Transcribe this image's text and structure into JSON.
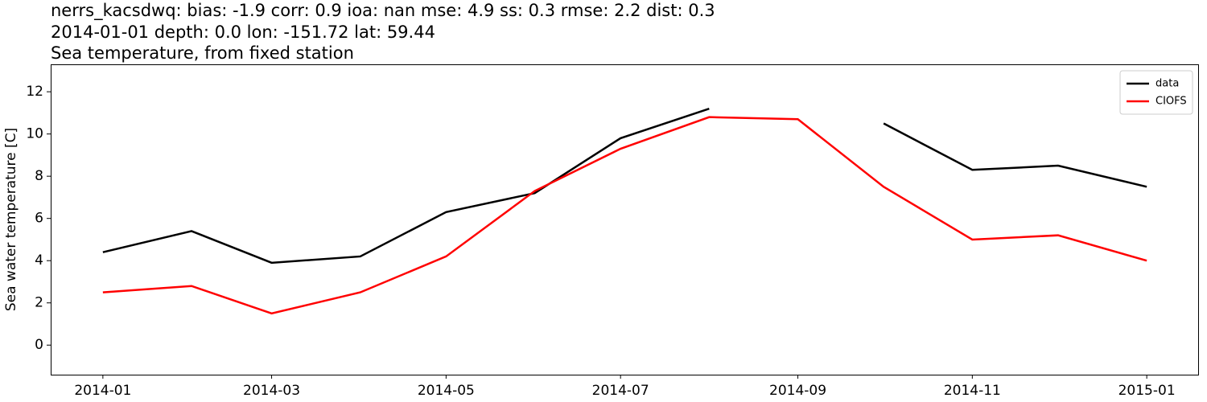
{
  "chart_data": {
    "type": "line",
    "title": "nerrs_kacsdwq: bias: -1.9  corr: 0.9  ioa: nan  mse: 4.9  ss: 0.3  rmse: 2.2  dist: 0.3",
    "subtitle": "2014-01-01 depth: 0.0 lon: -151.72 lat: 59.44",
    "subtitle2": "Sea temperature, from fixed station",
    "ylabel": "Sea water temperature [C]",
    "x": [
      "2014-01",
      "2014-02",
      "2014-03",
      "2014-04",
      "2014-05",
      "2014-06",
      "2014-07",
      "2014-08",
      "2014-09",
      "2014-10",
      "2014-11",
      "2014-12",
      "2015-01"
    ],
    "series": [
      {
        "name": "data",
        "color": "#000000",
        "values": [
          4.4,
          5.4,
          3.9,
          4.2,
          6.3,
          7.2,
          9.8,
          11.2,
          null,
          10.5,
          8.3,
          8.5,
          7.5
        ]
      },
      {
        "name": "CIOFS",
        "color": "#ff0000",
        "values": [
          2.5,
          2.8,
          1.5,
          2.5,
          4.2,
          7.3,
          9.3,
          10.8,
          10.7,
          7.5,
          5.0,
          5.2,
          4.0
        ]
      }
    ],
    "xticks": [
      "2014-01",
      "2014-03",
      "2014-05",
      "2014-07",
      "2014-09",
      "2014-11",
      "2015-01"
    ],
    "ylim": [
      -1.4,
      13.3
    ],
    "yticks": [
      0,
      2,
      4,
      6,
      8,
      10,
      12
    ],
    "grid": false,
    "legend": "upper right"
  }
}
